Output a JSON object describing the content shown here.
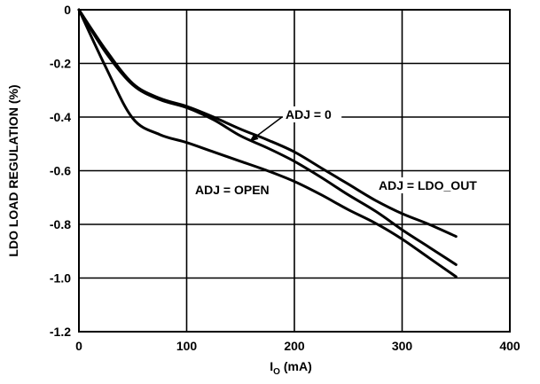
{
  "chart_data": {
    "type": "line",
    "title": "",
    "xlabel": "I",
    "xlabel_sub": "O",
    "xlabel_unit": "(mA)",
    "ylabel": "LDO LOAD REGULATION (%)",
    "xlim": [
      0,
      400
    ],
    "ylim": [
      -1.2,
      0
    ],
    "x_ticks": [
      0,
      100,
      200,
      300,
      400
    ],
    "x_tick_labels": [
      "0",
      "100",
      "200",
      "300",
      "400"
    ],
    "y_ticks": [
      0,
      -0.2,
      -0.4,
      -0.6,
      -0.8,
      -1.0,
      -1.2
    ],
    "y_tick_labels": [
      "0",
      "-0.2",
      "-0.4",
      "-0.6",
      "-0.8",
      "-1.0",
      "-1.2"
    ],
    "grid": true,
    "legend": "none",
    "line_color": "#000000",
    "series": [
      {
        "name": "ADJ = LDO_OUT",
        "x": [
          0,
          25,
          50,
          75,
          100,
          125,
          150,
          175,
          200,
          225,
          250,
          275,
          300,
          325,
          350
        ],
        "y": [
          0,
          -0.15,
          -0.275,
          -0.33,
          -0.36,
          -0.4,
          -0.445,
          -0.485,
          -0.53,
          -0.59,
          -0.65,
          -0.71,
          -0.76,
          -0.8,
          -0.845
        ]
      },
      {
        "name": "ADJ = 0",
        "x": [
          0,
          25,
          50,
          75,
          100,
          125,
          150,
          175,
          200,
          225,
          250,
          275,
          300,
          325,
          350
        ],
        "y": [
          0,
          -0.16,
          -0.28,
          -0.335,
          -0.365,
          -0.41,
          -0.47,
          -0.515,
          -0.565,
          -0.625,
          -0.69,
          -0.75,
          -0.82,
          -0.885,
          -0.95
        ]
      },
      {
        "name": "ADJ = OPEN",
        "x": [
          0,
          25,
          50,
          75,
          100,
          125,
          150,
          175,
          200,
          225,
          250,
          275,
          300,
          325,
          350
        ],
        "y": [
          0,
          -0.215,
          -0.405,
          -0.465,
          -0.495,
          -0.53,
          -0.565,
          -0.6,
          -0.64,
          -0.69,
          -0.745,
          -0.795,
          -0.855,
          -0.925,
          -0.995
        ]
      }
    ],
    "annotations": [
      {
        "text": "ADJ = 0",
        "series": "ADJ = 0",
        "arrow": true
      },
      {
        "text": "ADJ = OPEN",
        "series": "ADJ = OPEN",
        "arrow": false
      },
      {
        "text": "ADJ = LDO_OUT",
        "series": "ADJ = LDO_OUT",
        "arrow": false
      }
    ]
  }
}
